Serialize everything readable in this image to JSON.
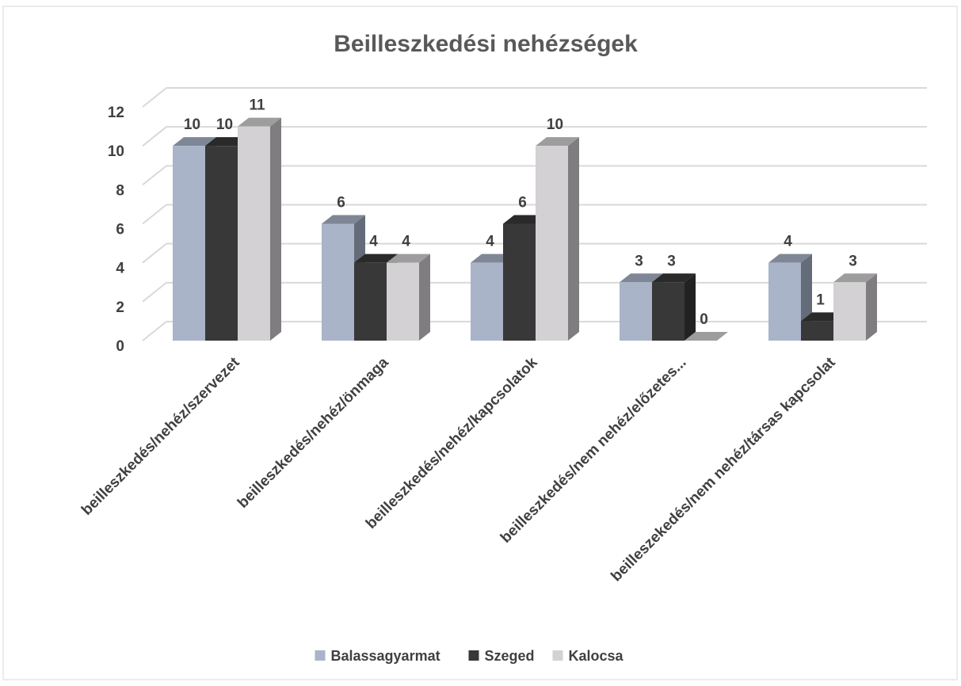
{
  "chart_data": {
    "type": "bar3d",
    "title": "Beilleszkedési nehézségek",
    "categories": [
      "beilleszkedés/nehéz/szervezet",
      "beilleszkedés/nehéz/önmaga",
      "beilleszkedés/nehéz/kapcsolatok",
      "beilleszkedés/nem nehéz/előzetes...",
      "beilleszekedés/nem nehéz/társas kapcsolat"
    ],
    "series": [
      {
        "name": "Balassagyarmat",
        "color": "#a9b4c9",
        "values": [
          10,
          6,
          4,
          3,
          4
        ]
      },
      {
        "name": "Szeged",
        "color": "#383838",
        "values": [
          10,
          4,
          6,
          3,
          1
        ]
      },
      {
        "name": "Kalocsa",
        "color": "#d3d1d3",
        "values": [
          11,
          4,
          10,
          0,
          3
        ]
      }
    ],
    "ylim": [
      0,
      12
    ],
    "yticks": [
      0,
      2,
      4,
      6,
      8,
      10,
      12
    ],
    "grid": true,
    "legend": "bottom"
  }
}
